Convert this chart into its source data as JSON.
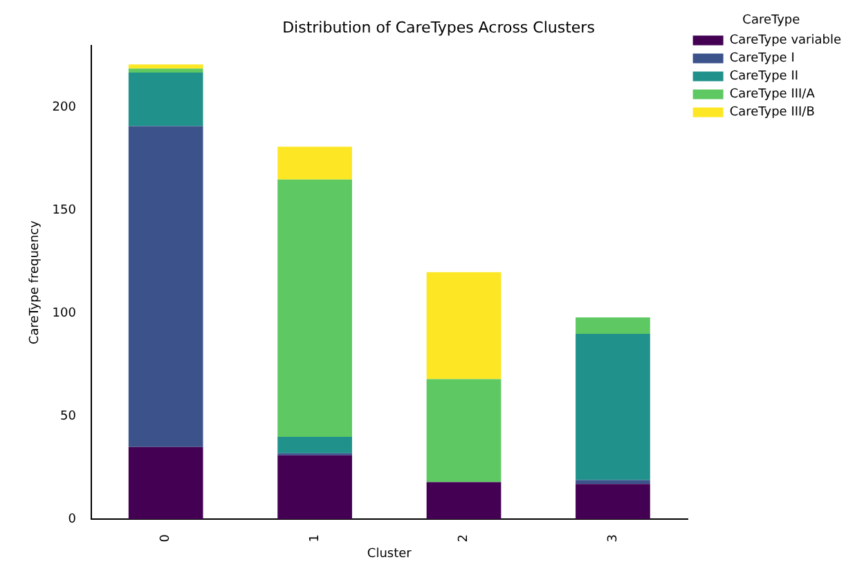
{
  "chart_data": {
    "type": "bar",
    "title": "Distribution of CareTypes Across Clusters",
    "xlabel": "Cluster",
    "ylabel": "CareType frequency",
    "legend_title": "CareType",
    "categories": [
      "0",
      "1",
      "2",
      "3"
    ],
    "stacked": true,
    "series": [
      {
        "name": "CareType variable",
        "color": "#440154",
        "values": [
          35,
          31,
          18,
          17
        ]
      },
      {
        "name": "CareType I",
        "color": "#3b528b",
        "values": [
          156,
          1,
          0,
          2
        ]
      },
      {
        "name": "CareType II",
        "color": "#21918c",
        "values": [
          26,
          8,
          0,
          71
        ]
      },
      {
        "name": "CareType III/A",
        "color": "#5ec962",
        "values": [
          2,
          125,
          50,
          8
        ]
      },
      {
        "name": "CareType III/B",
        "color": "#fde725",
        "values": [
          2,
          16,
          52,
          0
        ]
      }
    ],
    "ylim": [
      0,
      230
    ],
    "yticks": [
      0,
      50,
      100,
      150,
      200
    ],
    "grid": false,
    "legend": "top right"
  }
}
